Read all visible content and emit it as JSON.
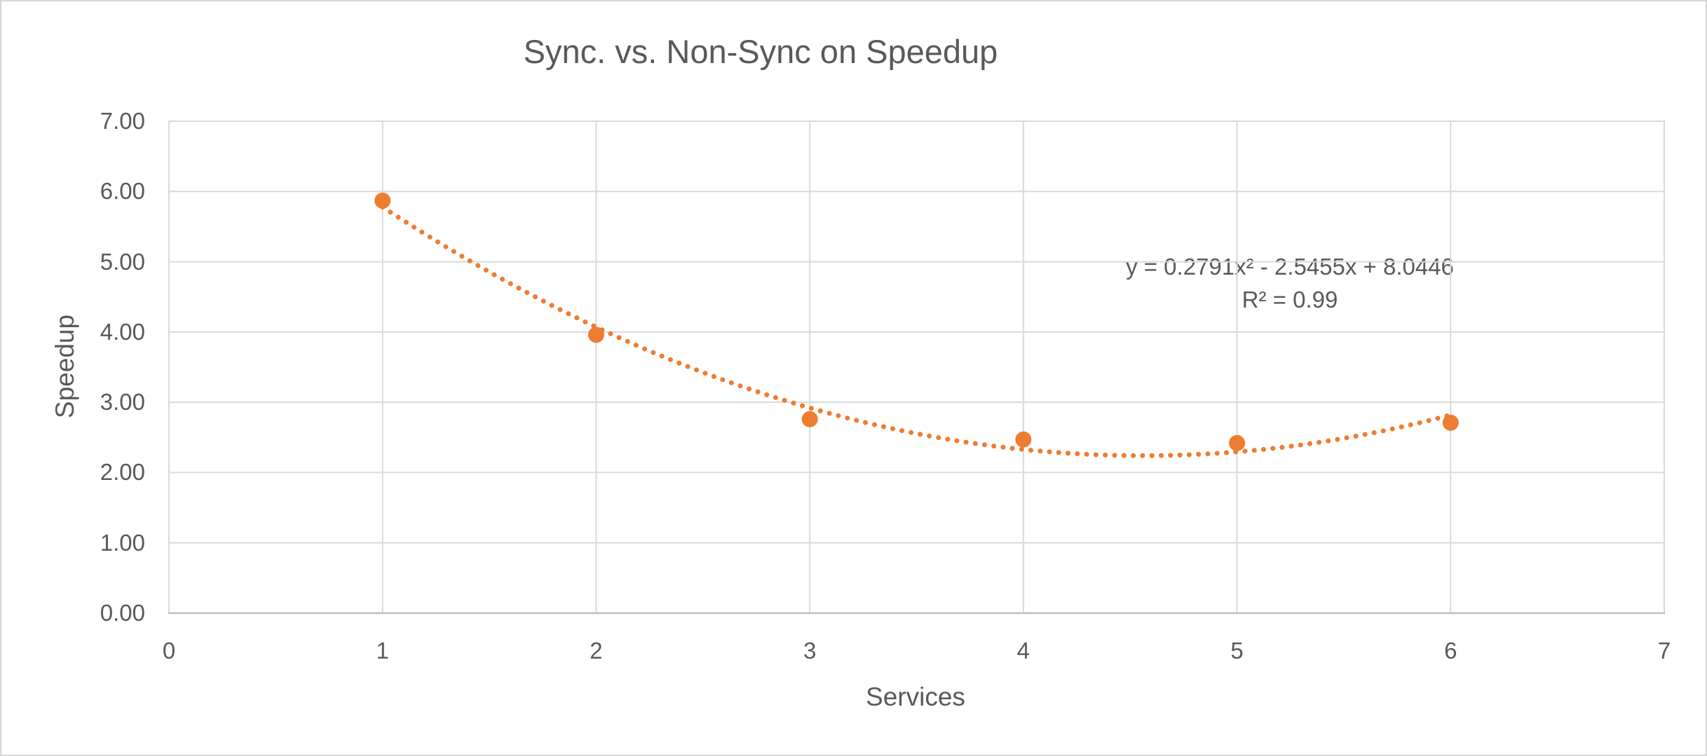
{
  "chart_data": {
    "type": "scatter",
    "title": "Sync. vs. Non-Sync on Speedup",
    "xlabel": "Services",
    "ylabel": "Speedup",
    "x": [
      1,
      2,
      3,
      4,
      5,
      6
    ],
    "y": [
      5.87,
      3.96,
      2.76,
      2.47,
      2.42,
      2.71
    ],
    "xlim": [
      0,
      7
    ],
    "ylim": [
      0,
      7
    ],
    "x_ticks": [
      "0",
      "1",
      "2",
      "3",
      "4",
      "5",
      "6",
      "7"
    ],
    "y_ticks": [
      "0.00",
      "1.00",
      "2.00",
      "3.00",
      "4.00",
      "5.00",
      "6.00",
      "7.00"
    ],
    "grid": true,
    "legend": "none",
    "marker_color": "#ED7D31",
    "trendline": {
      "type": "polynomial",
      "order": 2,
      "coefficients": {
        "a": 0.2791,
        "b": -2.5455,
        "c": 8.0446
      },
      "equation_label": "y = 0.2791x² - 2.5455x + 8.0446",
      "r_squared_label": "R² = 0.99",
      "style": "dotted",
      "color": "#ED7D31",
      "x_range": [
        1,
        6
      ]
    }
  },
  "colors": {
    "accent": "#ED7D31",
    "text": "#595959",
    "gridline": "#D9D9D9",
    "axis_line": "#BFBFBF",
    "outer_border": "#D6D6D6"
  }
}
